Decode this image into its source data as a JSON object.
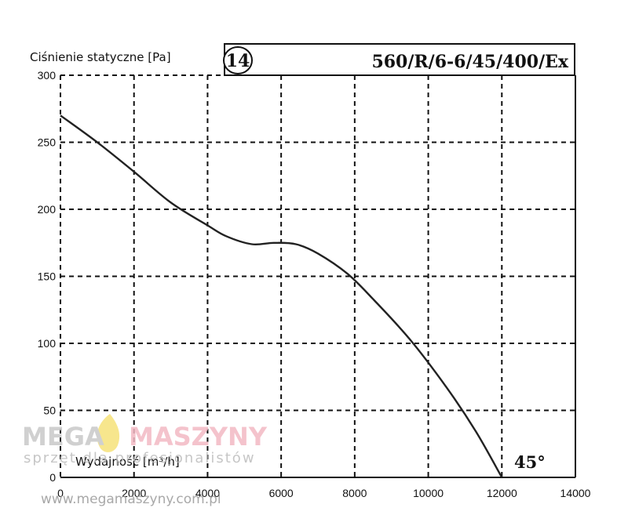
{
  "chart_data": {
    "type": "line",
    "ylabel": "Ciśnienie statyczne [Pa]",
    "xlabel": "Wydajność [m³/h]",
    "badge": "14",
    "model": "560/R/6-6/45/400/Ex",
    "angle_label": "45°",
    "xlim": [
      0,
      14000
    ],
    "ylim": [
      0,
      300
    ],
    "x_ticks": [
      0,
      2000,
      4000,
      6000,
      8000,
      10000,
      12000,
      14000
    ],
    "y_ticks": [
      0,
      50,
      100,
      150,
      200,
      250,
      300
    ],
    "x_tick_labels": [
      "0",
      "2000",
      "4000",
      "6000",
      "8000",
      "10000",
      "12000",
      "14000"
    ],
    "y_tick_labels": [
      "0",
      "50",
      "100",
      "150",
      "200",
      "250",
      "300"
    ],
    "grid": true,
    "series": [
      {
        "x": [
          0,
          1000,
          2000,
          3000,
          4000,
          4500,
          5200,
          5800,
          6400,
          7000,
          7800,
          8500,
          9500,
          10500,
          11300,
          12000
        ],
        "y": [
          270,
          250,
          228,
          205,
          188,
          180,
          174,
          175,
          174,
          167,
          152,
          133,
          103,
          67,
          34,
          0
        ]
      }
    ]
  },
  "watermark": {
    "brand_part1": "MEGA",
    "brand_part2": "MASZYNY",
    "tagline": "sprzęt dla profesjonalistów",
    "url": "www.megamaszyny.com.pl",
    "color_gray": "#c8c8c8",
    "color_pink": "#f3b9c4",
    "color_yellow": "#f6e27a"
  }
}
